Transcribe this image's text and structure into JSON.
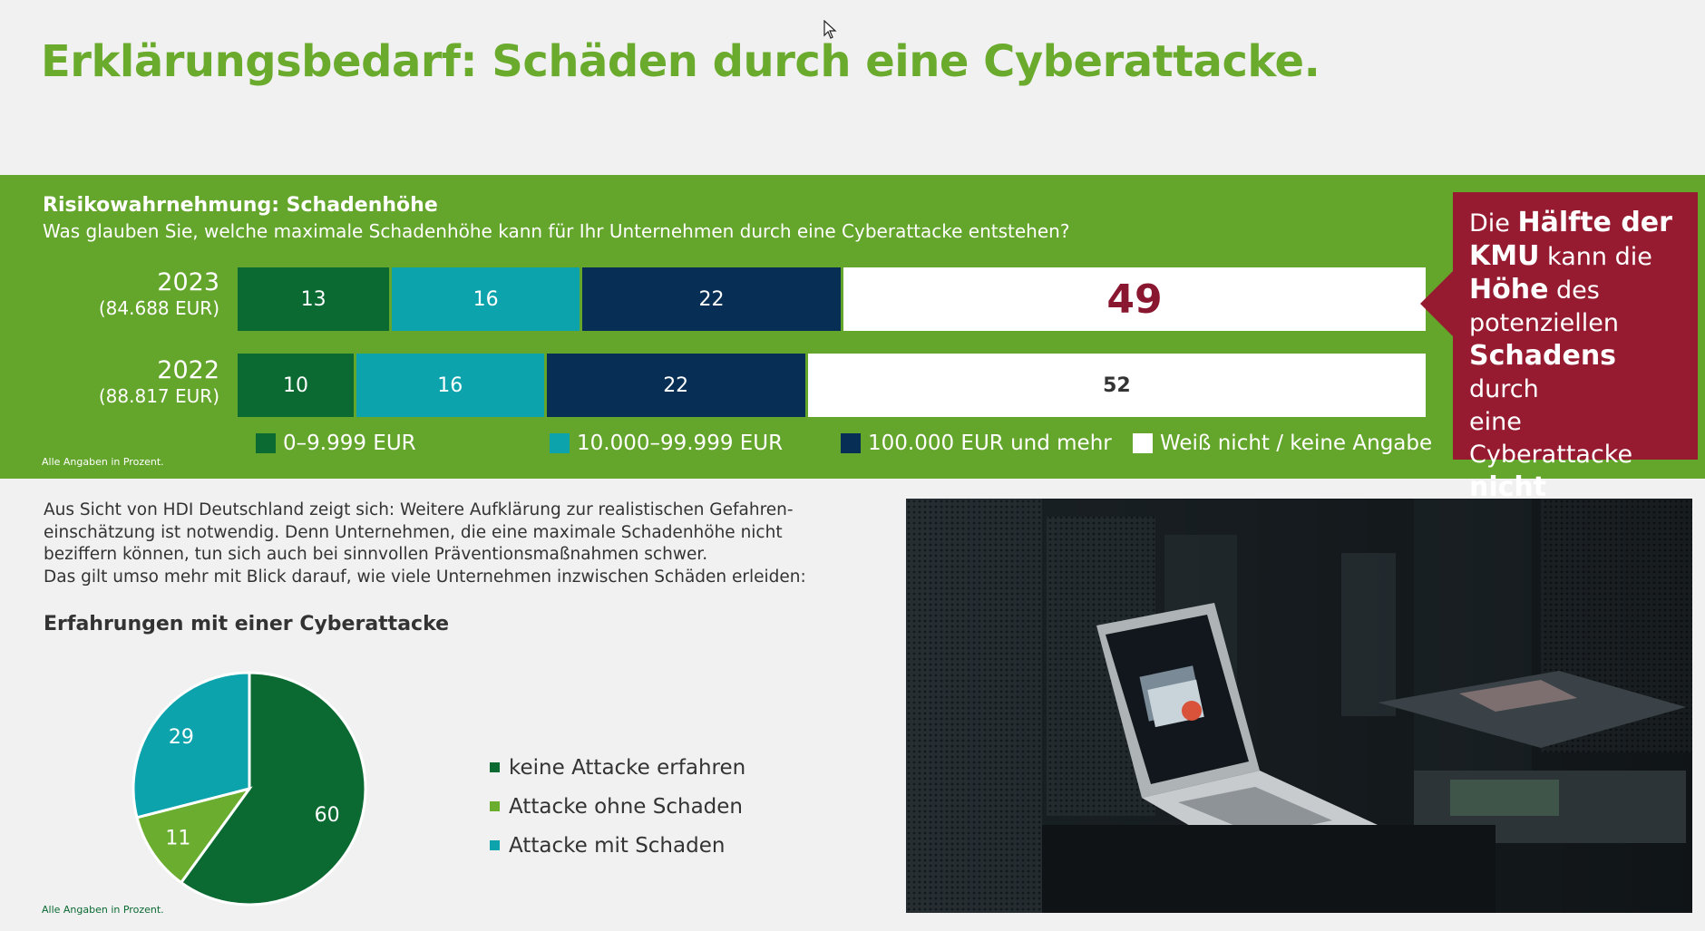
{
  "title": "Erklärungsbedarf: Schäden durch eine Cyberattacke.",
  "colors": {
    "green_band": "#64a52c",
    "title_green": "#6aaa2d",
    "dark_green": "#0a6a32",
    "teal": "#0ca3ad",
    "navy": "#072f55",
    "white": "#ffffff",
    "light_green": "#6aad2f",
    "callout_red": "#961b30"
  },
  "risk_chart": {
    "heading": "Risikowahrnehmung: Schadenhöhe",
    "question": "Was glauben Sie, welche maximale Schadenhöhe kann für Ihr Unternehmen durch eine Cyberattacke entstehen?",
    "note": "Alle Angaben in Prozent.",
    "legend": [
      "0–9.999 EUR",
      "10.000–99.999 EUR",
      "100.000 EUR und mehr",
      "Weiß nicht / keine Angabe"
    ],
    "rows": [
      {
        "year": "2023",
        "sub": "(84.688 EUR)",
        "values": [
          13,
          16,
          22,
          49
        ]
      },
      {
        "year": "2022",
        "sub": "(88.817 EUR)",
        "values": [
          10,
          16,
          22,
          52
        ]
      }
    ]
  },
  "callout": {
    "parts": [
      {
        "t": "Die ",
        "b": false
      },
      {
        "t": "Hälfte der",
        "b": true
      },
      {
        "br": true
      },
      {
        "t": "KMU",
        "b": true
      },
      {
        "t": " kann die",
        "b": false
      },
      {
        "br": true
      },
      {
        "t": "Höhe",
        "b": true
      },
      {
        "t": " des",
        "b": false
      },
      {
        "br": true
      },
      {
        "t": "potenziellen",
        "b": false
      },
      {
        "br": true
      },
      {
        "t": "Schadens",
        "b": true
      },
      {
        "t": " durch",
        "b": false
      },
      {
        "br": true
      },
      {
        "t": "eine Cyberattacke",
        "b": false
      },
      {
        "br": true
      },
      {
        "t": "nicht beziffern.",
        "b": true
      }
    ]
  },
  "paragraph": {
    "lines": [
      "Aus Sicht von HDI Deutschland zeigt sich: Weitere Aufklärung zur realistischen Gefahren-",
      "einschätzung ist notwendig. Denn Unternehmen, die eine maximale Schadenhöhe nicht",
      "beziffern können, tun sich auch bei sinnvollen Präventionsmaßnahmen schwer.",
      "Das gilt umso mehr mit Blick darauf, wie viele Unternehmen inzwischen Schäden erleiden:"
    ]
  },
  "experience": {
    "heading": "Erfahrungen mit einer Cyberattacke",
    "note": "Alle Angaben in Prozent."
  },
  "chart_data": [
    {
      "type": "bar",
      "orientation": "horizontal-stacked-100",
      "categories": [
        "2023",
        "2022"
      ],
      "category_sublabels": [
        "(84.688 EUR)",
        "(88.817 EUR)"
      ],
      "series": [
        {
          "name": "0–9.999 EUR",
          "values": [
            13,
            10
          ],
          "color": "#0a6a32"
        },
        {
          "name": "10.000–99.999 EUR",
          "values": [
            16,
            16
          ],
          "color": "#0ca3ad"
        },
        {
          "name": "100.000 EUR und mehr",
          "values": [
            22,
            22
          ],
          "color": "#072f55"
        },
        {
          "name": "Weiß nicht / keine Angabe",
          "values": [
            49,
            52
          ],
          "color": "#ffffff"
        }
      ],
      "title": "Risikowahrnehmung: Schadenhöhe",
      "xlim": [
        0,
        100
      ],
      "legend_position": "bottom"
    },
    {
      "type": "pie",
      "title": "Erfahrungen mit einer Cyberattacke",
      "slices": [
        {
          "name": "keine Attacke erfahren",
          "value": 60,
          "color": "#0a6a32"
        },
        {
          "name": "Attacke ohne Schaden",
          "value": 11,
          "color": "#6aad2f"
        },
        {
          "name": "Attacke mit Schaden",
          "value": 29,
          "color": "#0ca3ad"
        }
      ],
      "legend_position": "right"
    }
  ]
}
